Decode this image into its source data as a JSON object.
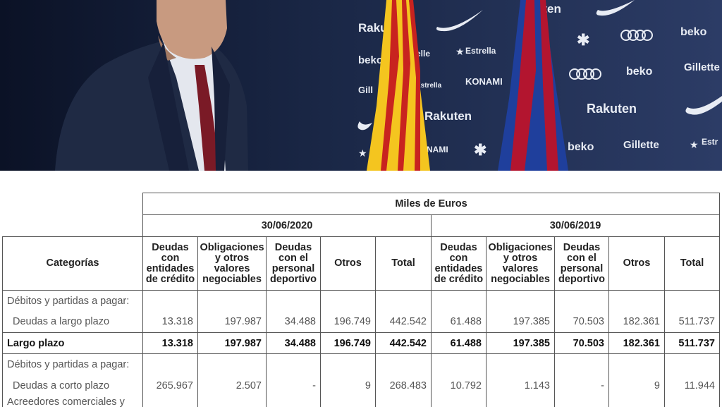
{
  "photo": {
    "sponsors": [
      "Rakuten",
      "beko",
      "Estrella",
      "KONAMI",
      "Gillette",
      "audi",
      "caixa",
      "nike"
    ],
    "colors": {
      "backdrop": "#1d2740",
      "suit": "#1f2a44",
      "tie": "#7a1a26",
      "flag_yellow": "#f4c51f",
      "flag_red": "#c8231f",
      "barca_blue": "#1f3f9c",
      "barca_red": "#b3152f"
    }
  },
  "table": {
    "unit_header": "Miles de Euros",
    "periods": [
      "30/06/2020",
      "30/06/2019"
    ],
    "category_header": "Categorías",
    "columns": [
      "Deudas con entidades de crédito",
      "Obligaciones y otros valores negociables",
      "Deudas con el personal deportivo",
      "Otros",
      "Total"
    ],
    "rows": [
      {
        "label": "Débitos y partidas a pagar:",
        "values": [
          "",
          "",
          "",
          "",
          "",
          "",
          "",
          "",
          "",
          ""
        ]
      },
      {
        "label": "Deudas a largo plazo",
        "values": [
          "13.318",
          "197.987",
          "34.488",
          "196.749",
          "442.542",
          "61.488",
          "197.385",
          "70.503",
          "182.361",
          "511.737"
        ]
      },
      {
        "label": "Largo plazo",
        "values": [
          "13.318",
          "197.987",
          "34.488",
          "196.749",
          "442.542",
          "61.488",
          "197.385",
          "70.503",
          "182.361",
          "511.737"
        ]
      },
      {
        "label": "Débitos y partidas a pagar:",
        "values": [
          "",
          "",
          "",
          "",
          "",
          "",
          "",
          "",
          "",
          ""
        ]
      },
      {
        "label": "Deudas a corto plazo",
        "values": [
          "265.967",
          "2.507",
          "-",
          "9",
          "268.483",
          "10.792",
          "1.143",
          "-",
          "9",
          "11.944"
        ]
      },
      {
        "label": "Acreedores comerciales y",
        "values": [
          "",
          "",
          "",
          "",
          "",
          "",
          "",
          "",
          "",
          ""
        ]
      }
    ]
  }
}
